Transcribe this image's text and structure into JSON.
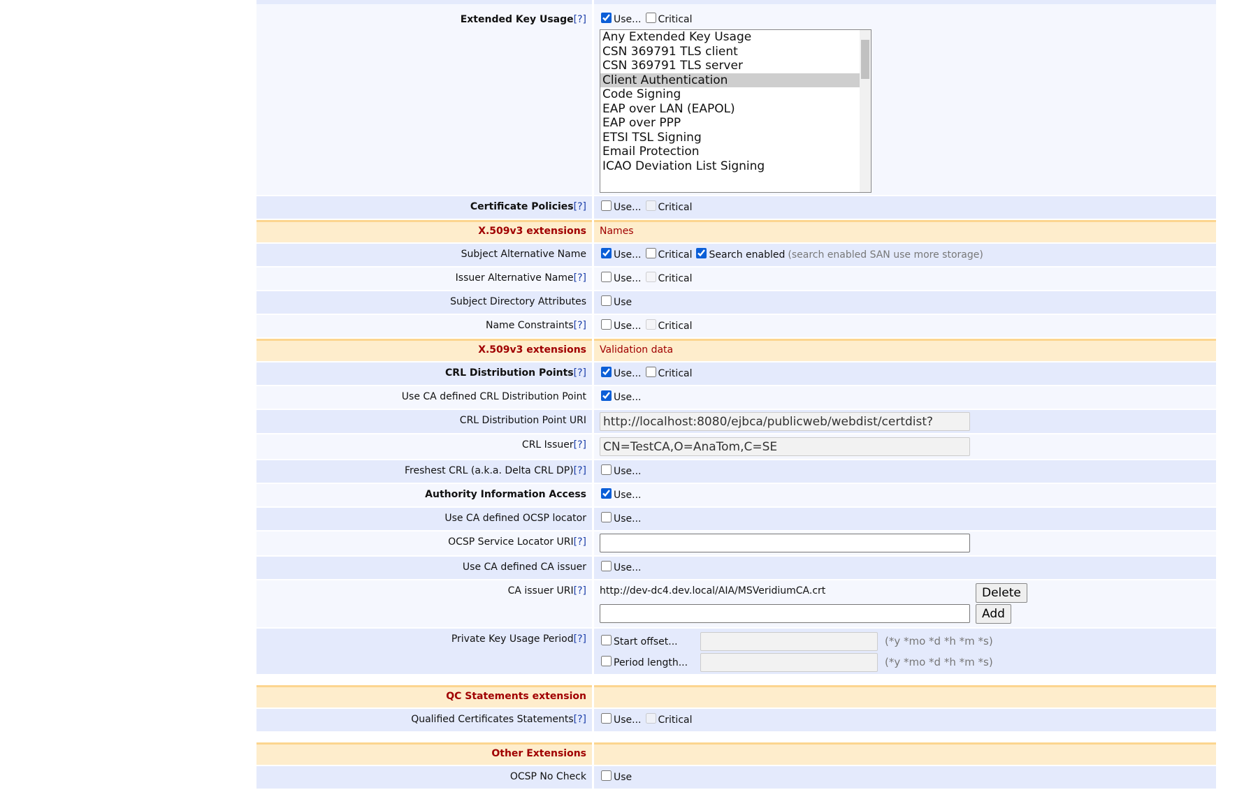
{
  "eku": {
    "label": "Extended Key Usage",
    "help": "[?]",
    "use": "Use...",
    "critical": "Critical",
    "use_checked": true,
    "critical_checked": false,
    "options": [
      "Any Extended Key Usage",
      "CSN 369791 TLS client",
      "CSN 369791 TLS server",
      "Client Authentication",
      "Code Signing",
      "EAP over LAN (EAPOL)",
      "EAP over PPP",
      "ETSI TSL Signing",
      "Email Protection",
      "ICAO Deviation List Signing"
    ],
    "selected": "Client Authentication"
  },
  "cert_policies": {
    "label": "Certificate Policies",
    "help": "[?]",
    "use": "Use...",
    "critical": "Critical"
  },
  "hdr_names": {
    "label": "X.509v3 extensions",
    "value": "Names"
  },
  "san": {
    "label": "Subject Alternative Name",
    "use": "Use...",
    "critical": "Critical",
    "search": "Search enabled",
    "note": "(search enabled SAN use more storage)"
  },
  "ian": {
    "label": "Issuer Alternative Name",
    "help": "[?]",
    "use": "Use...",
    "critical": "Critical"
  },
  "sda": {
    "label": "Subject Directory Attributes",
    "use": "Use"
  },
  "nc": {
    "label": "Name Constraints",
    "help": "[?]",
    "use": "Use...",
    "critical": "Critical"
  },
  "hdr_validation": {
    "label": "X.509v3 extensions",
    "value": "Validation data"
  },
  "crldp": {
    "label": "CRL Distribution Points",
    "help": "[?]",
    "use": "Use...",
    "critical": "Critical"
  },
  "use_ca_crldp": {
    "label": "Use CA defined CRL Distribution Point",
    "use": "Use..."
  },
  "crldp_uri": {
    "label": "CRL Distribution Point URI",
    "value": "http://localhost:8080/ejbca/publicweb/webdist/certdist?"
  },
  "crl_issuer": {
    "label": "CRL Issuer",
    "help": "[?]",
    "value": "CN=TestCA,O=AnaTom,C=SE"
  },
  "freshest": {
    "label": "Freshest CRL (a.k.a. Delta CRL DP)",
    "help": "[?]",
    "use": "Use..."
  },
  "aia": {
    "label": "Authority Information Access",
    "use": "Use..."
  },
  "use_ca_ocsp": {
    "label": "Use CA defined OCSP locator",
    "use": "Use..."
  },
  "ocsp_uri": {
    "label": "OCSP Service Locator URI",
    "help": "[?]",
    "value": ""
  },
  "use_ca_issuer": {
    "label": "Use CA defined CA issuer",
    "use": "Use..."
  },
  "ca_issuer_uri": {
    "label": "CA issuer URI",
    "help": "[?]",
    "existing": "http://dev-dc4.dev.local/AIA/MSVeridiumCA.crt",
    "delete": "Delete",
    "add": "Add",
    "value": ""
  },
  "pkup": {
    "label": "Private Key Usage Period",
    "help": "[?]",
    "start": "Start offset...",
    "length": "Period length...",
    "hint": "(*y *mo *d *h *m *s)"
  },
  "hdr_qc": {
    "label": "QC Statements extension"
  },
  "qcs": {
    "label": "Qualified Certificates Statements",
    "help": "[?]",
    "use": "Use...",
    "critical": "Critical"
  },
  "hdr_other": {
    "label": "Other Extensions"
  },
  "ocsp_nocheck": {
    "label": "OCSP No Check",
    "use": "Use"
  },
  "colors": {
    "row_blue": "#e4eafc",
    "row_light": "#f5f7fe",
    "header_bg": "#feedcc",
    "header_border": "#fcd58f",
    "header_text": "#a00000",
    "help_link": "#1a3da8"
  }
}
